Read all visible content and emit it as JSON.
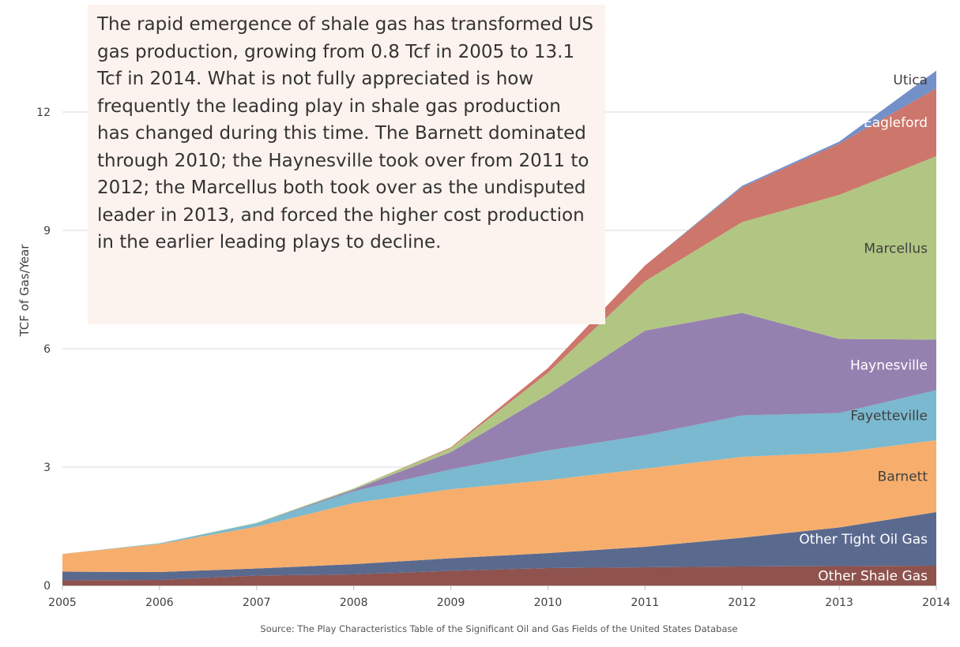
{
  "annotation": "The rapid emergence of shale gas has transformed US gas production, growing from 0.8 Tcf in 2005 to 13.1 Tcf in 2014. What is not fully appreciated is how frequently the leading play in shale gas production has changed during this time. The Barnett dominated through 2010; the Haynesville took over from 2011 to 2012; the Marcellus both took over as the undisputed leader in 2013, and forced the higher cost production in the earlier leading plays to decline.",
  "source": "Source:  The Play Characteristics Table of the Significant Oil and Gas Fields of the United States Database",
  "chart_data": {
    "type": "area",
    "stacked": true,
    "title": "",
    "xlabel": "",
    "ylabel": "TCF of Gas/Year",
    "x": [
      2005,
      2006,
      2007,
      2008,
      2009,
      2010,
      2011,
      2012,
      2013,
      2014
    ],
    "x_tick_labels": [
      "2005",
      "2006",
      "2007",
      "2008",
      "2009",
      "2010",
      "2011",
      "2012",
      "2013",
      "2014"
    ],
    "ylim": [
      0,
      13.1
    ],
    "y_ticks": [
      0,
      3,
      6,
      9,
      12
    ],
    "y_tick_labels": [
      "0",
      "3",
      "6",
      "9",
      "12"
    ],
    "grid": "horizontal",
    "legend": "inline labels at right edge",
    "series": [
      {
        "name": "Other Shale Gas",
        "color": "#8f524d",
        "label_color": "#ffffff",
        "values": [
          0.13,
          0.14,
          0.25,
          0.28,
          0.37,
          0.44,
          0.46,
          0.48,
          0.49,
          0.5
        ]
      },
      {
        "name": "Other Tight Oil Gas",
        "color": "#5a6a8f",
        "label_color": "#ffffff",
        "values": [
          0.22,
          0.2,
          0.18,
          0.26,
          0.32,
          0.38,
          0.52,
          0.73,
          0.98,
          1.36
        ]
      },
      {
        "name": "Barnett",
        "color": "#f7ae6d",
        "label_color": "#404040",
        "values": [
          0.45,
          0.71,
          1.06,
          1.55,
          1.75,
          1.85,
          1.98,
          2.05,
          1.9,
          1.82
        ]
      },
      {
        "name": "Fayetteville",
        "color": "#7ab9cf",
        "label_color": "#404040",
        "values": [
          0.0,
          0.02,
          0.09,
          0.3,
          0.5,
          0.75,
          0.85,
          1.05,
          1.0,
          1.27
        ]
      },
      {
        "name": "Haynesville",
        "color": "#9581b0",
        "label_color": "#ffffff",
        "values": [
          0.0,
          0.0,
          0.0,
          0.04,
          0.44,
          1.42,
          2.65,
          2.6,
          1.88,
          1.28
        ]
      },
      {
        "name": "Marcellus",
        "color": "#b2c683",
        "label_color": "#404040",
        "values": [
          0.0,
          0.0,
          0.01,
          0.03,
          0.1,
          0.55,
          1.25,
          2.3,
          3.65,
          4.65
        ]
      },
      {
        "name": "Eagleford",
        "color": "#cd766b",
        "label_color": "#ffffff",
        "values": [
          0.0,
          0.0,
          0.0,
          0.0,
          0.02,
          0.12,
          0.4,
          0.88,
          1.3,
          1.72
        ]
      },
      {
        "name": "Utica",
        "color": "#7490c8",
        "label_color": "#404040",
        "values": [
          0.0,
          0.0,
          0.0,
          0.0,
          0.0,
          0.0,
          0.0,
          0.04,
          0.05,
          0.45
        ]
      }
    ]
  }
}
